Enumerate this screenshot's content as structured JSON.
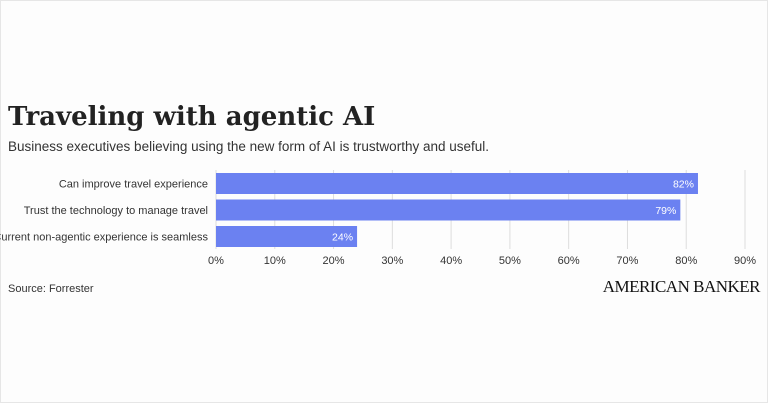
{
  "title": "Traveling with agentic AI",
  "subtitle": "Business executives believing using the new form of AI is trustworthy and useful.",
  "source": "Source: Forrester",
  "brand": "AMERICAN BANKER",
  "colors": {
    "bar": "#6b81f1",
    "grid": "#dddddd",
    "text": "#333333"
  },
  "chart_data": {
    "type": "bar",
    "orientation": "horizontal",
    "categories": [
      "Can improve travel experience",
      "Trust the technology to manage travel",
      "Current non-agentic experience is seamless"
    ],
    "values": [
      82,
      79,
      24
    ],
    "value_labels": [
      "82%",
      "79%",
      "24%"
    ],
    "xlim": [
      0,
      90
    ],
    "xticks": [
      0,
      10,
      20,
      30,
      40,
      50,
      60,
      70,
      80,
      90
    ],
    "xtick_labels": [
      "0%",
      "10%",
      "20%",
      "30%",
      "40%",
      "50%",
      "60%",
      "70%",
      "80%",
      "90%"
    ],
    "grid": true
  }
}
